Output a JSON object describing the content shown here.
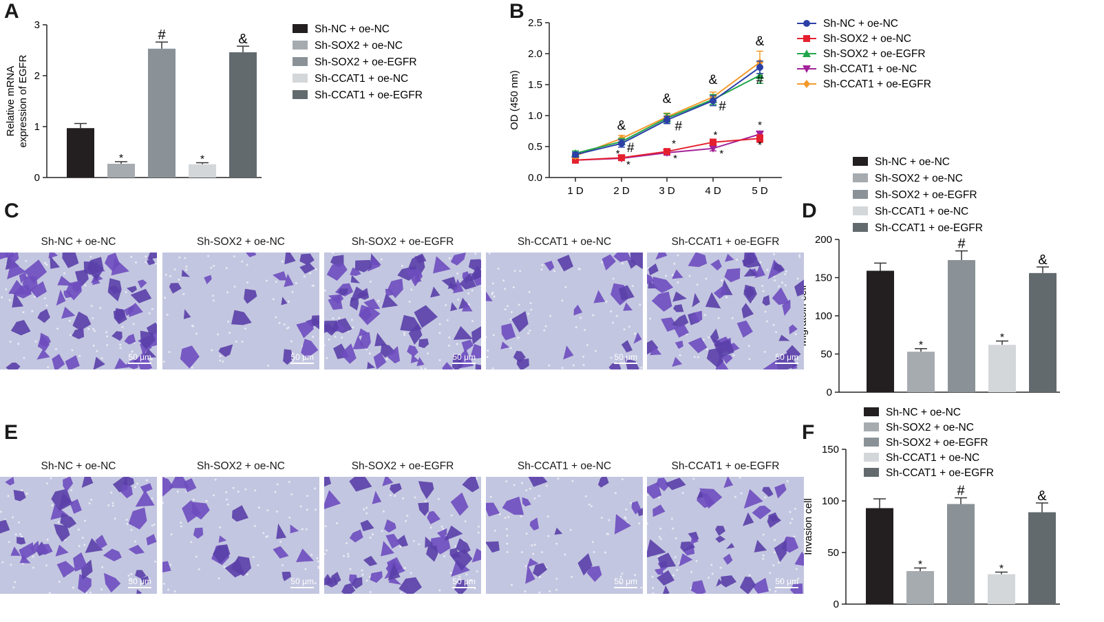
{
  "panels": {
    "a": "A",
    "b": "B",
    "c": "C",
    "d": "D",
    "e": "E",
    "f": "F"
  },
  "groups": [
    "Sh-NC + oe-NC",
    "Sh-SOX2 + oe-NC",
    "Sh-SOX2 + oe-EGFR",
    "Sh-CCAT1 + oe-NC",
    "Sh-CCAT1 + oe-EGFR"
  ],
  "bar_colors": [
    "#231f20",
    "#a6abb0",
    "#8a9297",
    "#d4d7da",
    "#626a6e"
  ],
  "line_colors": [
    "#2b3fa6",
    "#e5202e",
    "#1fa64a",
    "#a3229a",
    "#f39a2b"
  ],
  "line_markers": [
    "circle",
    "square",
    "triangle-up",
    "triangle-down",
    "diamond"
  ],
  "scale_bar": "50 μm",
  "chart_data": [
    {
      "panel": "A",
      "type": "bar",
      "ylabel_line1": "Relative mRNA",
      "ylabel_line2": "expression of EGFR",
      "categories": [
        "Sh-NC + oe-NC",
        "Sh-SOX2 + oe-NC",
        "Sh-SOX2 + oe-EGFR",
        "Sh-CCAT1 + oe-NC",
        "Sh-CCAT1 + oe-EGFR"
      ],
      "values": [
        0.97,
        0.27,
        2.53,
        0.26,
        2.46
      ],
      "errors": [
        0.09,
        0.04,
        0.13,
        0.03,
        0.12
      ],
      "annotations": [
        "",
        "*",
        "#",
        "*",
        "&"
      ],
      "ylim": [
        0,
        3
      ],
      "yticks": [
        0,
        1,
        2,
        3
      ],
      "legend": "right"
    },
    {
      "panel": "B",
      "type": "line",
      "ylabel": "OD (450 nm)",
      "x": [
        "1 D",
        "2 D",
        "3 D",
        "4 D",
        "5 D"
      ],
      "ylim": [
        0,
        2.5
      ],
      "yticks": [
        "0.0",
        "0.5",
        "1.0",
        "1.5",
        "2.0",
        "2.5"
      ],
      "series": [
        {
          "name": "Sh-NC + oe-NC",
          "values": [
            0.37,
            0.55,
            0.93,
            1.24,
            1.78
          ],
          "errors": [
            0.04,
            0.06,
            0.06,
            0.08,
            0.1
          ]
        },
        {
          "name": "Sh-SOX2 + oe-NC",
          "values": [
            0.28,
            0.32,
            0.42,
            0.57,
            0.63
          ],
          "errors": [
            0.03,
            0.04,
            0.04,
            0.05,
            0.06
          ]
        },
        {
          "name": "Sh-SOX2 + oe-EGFR",
          "values": [
            0.39,
            0.58,
            0.96,
            1.26,
            1.65
          ],
          "errors": [
            0.04,
            0.05,
            0.07,
            0.08,
            0.13
          ]
        },
        {
          "name": "Sh-CCAT1 + oe-NC",
          "values": [
            0.28,
            0.31,
            0.4,
            0.47,
            0.7
          ],
          "errors": [
            0.03,
            0.03,
            0.04,
            0.04,
            0.05
          ]
        },
        {
          "name": "Sh-CCAT1 + oe-EGFR",
          "values": [
            0.35,
            0.63,
            0.98,
            1.3,
            1.86
          ],
          "errors": [
            0.04,
            0.05,
            0.06,
            0.08,
            0.18
          ]
        }
      ],
      "annotations": [
        {
          "text": "&",
          "x": 1,
          "y": 0.84
        },
        {
          "text": "#",
          "x": 1.2,
          "y": 0.48
        },
        {
          "text": "*",
          "x": 0.92,
          "y": 0.4
        },
        {
          "text": "*",
          "x": 1.15,
          "y": 0.22
        },
        {
          "text": "&",
          "x": 2,
          "y": 1.27
        },
        {
          "text": "#",
          "x": 2.25,
          "y": 0.83
        },
        {
          "text": "*",
          "x": 2.15,
          "y": 0.56
        },
        {
          "text": "*",
          "x": 2.18,
          "y": 0.32
        },
        {
          "text": "&",
          "x": 3,
          "y": 1.58
        },
        {
          "text": "#",
          "x": 3.2,
          "y": 1.15
        },
        {
          "text": "*",
          "x": 3.05,
          "y": 0.7
        },
        {
          "text": "*",
          "x": 3.18,
          "y": 0.4
        },
        {
          "text": "&",
          "x": 4,
          "y": 2.2
        },
        {
          "text": "#",
          "x": 4.22,
          "y": 1.58
        },
        {
          "text": "*",
          "x": 4,
          "y": 0.86
        },
        {
          "text": "*",
          "x": 4.15,
          "y": 0.54
        }
      ],
      "legend": "right"
    },
    {
      "panel": "D",
      "type": "bar",
      "ylabel": "Migratoin cell",
      "categories": [
        "Sh-NC + oe-NC",
        "Sh-SOX2 + oe-NC",
        "Sh-SOX2 + oe-EGFR",
        "Sh-CCAT1 + oe-NC",
        "Sh-CCAT1 + oe-EGFR"
      ],
      "values": [
        159,
        53,
        173,
        62,
        156
      ],
      "errors": [
        10,
        4,
        12,
        5,
        8
      ],
      "annotations": [
        "",
        "*",
        "#",
        "*",
        "&"
      ],
      "ylim": [
        0,
        200
      ],
      "yticks": [
        0,
        50,
        100,
        150,
        200
      ],
      "legend": "top"
    },
    {
      "panel": "F",
      "type": "bar",
      "ylabel": "Invasion cell",
      "categories": [
        "Sh-NC + oe-NC",
        "Sh-SOX2 + oe-NC",
        "Sh-SOX2 + oe-EGFR",
        "Sh-CCAT1 + oe-NC",
        "Sh-CCAT1 + oe-EGFR"
      ],
      "values": [
        93,
        32,
        97,
        29,
        89
      ],
      "errors": [
        9,
        3,
        6,
        2,
        9
      ],
      "annotations": [
        "",
        "*",
        "#",
        "*",
        "&"
      ],
      "ylim": [
        0,
        150
      ],
      "yticks": [
        0,
        50,
        100,
        150
      ],
      "legend": "top"
    }
  ]
}
